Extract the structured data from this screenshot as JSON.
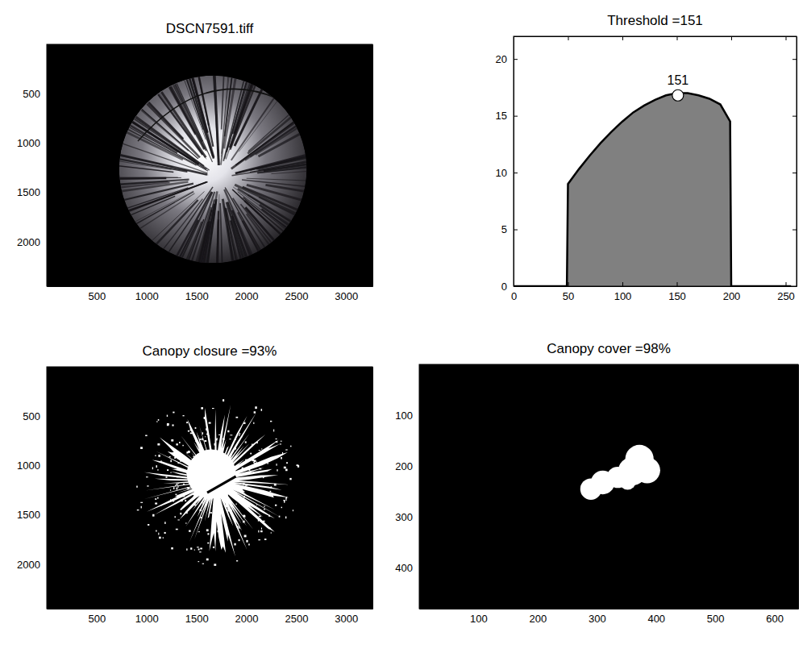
{
  "chart_data": [
    {
      "type": "image",
      "title": "DSCN7591.tiff",
      "xlim": [
        0,
        3264
      ],
      "ylim": [
        0,
        2448
      ],
      "xticks": [
        500,
        1000,
        1500,
        2000,
        2500,
        3000
      ],
      "yticks": [
        500,
        1000,
        1500,
        2000
      ]
    },
    {
      "type": "area",
      "title": "Threshold =151",
      "color": "#808080",
      "x": [
        0,
        49,
        50,
        60,
        70,
        80,
        90,
        100,
        110,
        120,
        130,
        140,
        150,
        160,
        170,
        180,
        190,
        199,
        200,
        255
      ],
      "values": [
        0,
        0,
        9,
        10.3,
        11.5,
        12.6,
        13.6,
        14.5,
        15.3,
        15.9,
        16.4,
        16.8,
        17,
        17,
        16.8,
        16.5,
        16,
        14.5,
        0,
        0
      ],
      "xlim": [
        0,
        260
      ],
      "ylim": [
        0,
        22
      ],
      "xticks": [
        0,
        50,
        100,
        150,
        200,
        250
      ],
      "yticks": [
        0,
        5,
        10,
        15,
        20
      ],
      "annotations": [
        {
          "x": 151,
          "y": 16.8,
          "text": "151"
        }
      ]
    },
    {
      "type": "image",
      "title": "Canopy closure =93%",
      "xlim": [
        0,
        3264
      ],
      "ylim": [
        0,
        2448
      ],
      "xticks": [
        500,
        1000,
        1500,
        2000,
        2500,
        3000
      ],
      "yticks": [
        500,
        1000,
        1500,
        2000
      ]
    },
    {
      "type": "image",
      "title": "Canopy cover =98%",
      "xlim": [
        0,
        640
      ],
      "ylim": [
        0,
        480
      ],
      "xticks": [
        100,
        200,
        300,
        400,
        500,
        600
      ],
      "yticks": [
        100,
        200,
        300,
        400
      ]
    }
  ]
}
